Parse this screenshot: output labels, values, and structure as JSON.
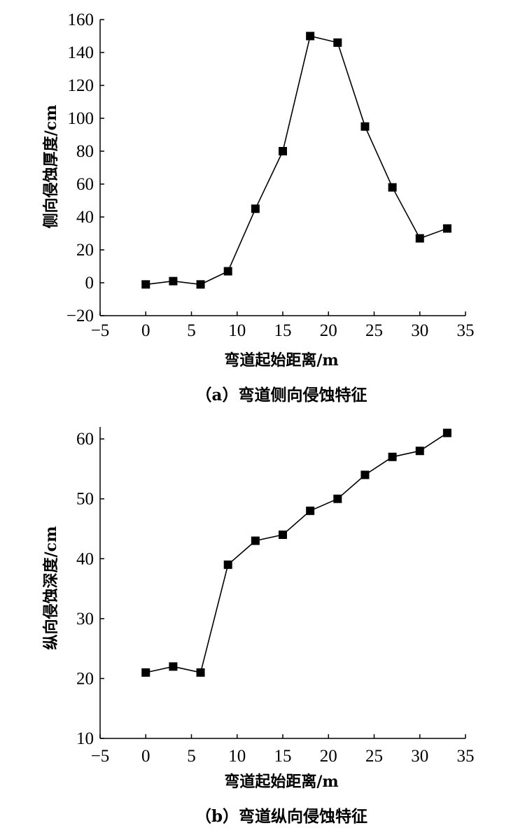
{
  "chart_data": [
    {
      "type": "line",
      "caption": "（a）弯道侧向侵蚀特征",
      "xlabel": "弯道起始距离/m",
      "ylabel": "侧向侵蚀厚度/cm",
      "xlim": [
        -5,
        35
      ],
      "ylim": [
        -20,
        160
      ],
      "xticks": [
        -5,
        0,
        5,
        10,
        15,
        20,
        25,
        30,
        35
      ],
      "xtick_labels": [
        "−5",
        "0",
        "5",
        "10",
        "15",
        "20",
        "25",
        "30",
        "35"
      ],
      "yticks": [
        -20,
        0,
        20,
        40,
        60,
        80,
        100,
        120,
        140,
        160
      ],
      "ytick_labels": [
        "−20",
        "0",
        "20",
        "40",
        "60",
        "80",
        "100",
        "120",
        "140",
        "160"
      ],
      "grid": false,
      "marker": "square",
      "color": "#000000",
      "series": [
        {
          "x": [
            0,
            3,
            6,
            9,
            12,
            15,
            18,
            21,
            24,
            27,
            30,
            33
          ],
          "y": [
            -1,
            1,
            -1,
            7,
            45,
            80,
            150,
            146,
            95,
            58,
            27,
            33
          ]
        }
      ]
    },
    {
      "type": "line",
      "caption": "（b）弯道纵向侵蚀特征",
      "xlabel": "弯道起始距离/m",
      "ylabel": "纵向侵蚀深度/cm",
      "xlim": [
        -5,
        35
      ],
      "ylim": [
        10,
        62
      ],
      "xticks": [
        -5,
        0,
        5,
        10,
        15,
        20,
        25,
        30,
        35
      ],
      "xtick_labels": [
        "−5",
        "0",
        "5",
        "10",
        "15",
        "20",
        "25",
        "30",
        "35"
      ],
      "yticks": [
        10,
        20,
        30,
        40,
        50,
        60
      ],
      "ytick_labels": [
        "10",
        "20",
        "30",
        "40",
        "50",
        "60"
      ],
      "grid": false,
      "marker": "square",
      "color": "#000000",
      "series": [
        {
          "x": [
            0,
            3,
            6,
            9,
            12,
            15,
            18,
            21,
            24,
            27,
            30,
            33
          ],
          "y": [
            21,
            22,
            21,
            39,
            43,
            44,
            48,
            50,
            54,
            57,
            58,
            61
          ]
        }
      ]
    }
  ]
}
